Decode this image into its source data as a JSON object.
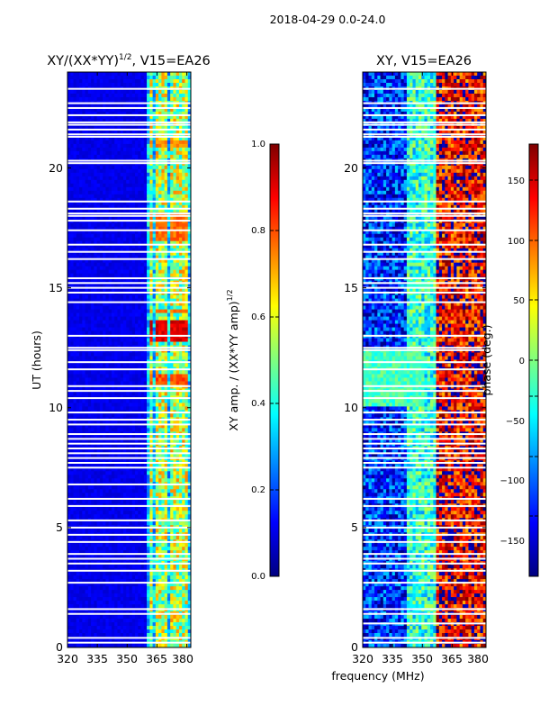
{
  "figure": {
    "suptitle": "2018-04-29 0.0-24.0",
    "xlabel_shared": "frequency (MHz)"
  },
  "colormap": {
    "name": "jet",
    "stops": [
      "#00007f",
      "#0000ff",
      "#007fff",
      "#00ffff",
      "#7fff7f",
      "#ffff00",
      "#ff7f00",
      "#ff0000",
      "#7f0000"
    ]
  },
  "chart_data": [
    {
      "type": "heatmap",
      "title": "XY/(XX*YY)",
      "title_sup": "1/2",
      "title_suffix": ", V15=EA26",
      "xlabel": "",
      "ylabel": "UT (hours)",
      "xlim": [
        320,
        382
      ],
      "ylim": [
        0,
        24
      ],
      "xticks": [
        "320",
        "335",
        "350",
        "365",
        "380"
      ],
      "xtick_values": [
        320,
        335,
        350,
        365,
        380
      ],
      "yticks": [
        "0",
        "5",
        "10",
        "15",
        "20"
      ],
      "ytick_values": [
        0,
        5,
        10,
        15,
        20
      ],
      "colorbar": {
        "label": "XY amp. / (XX*YY amp)",
        "label_sup": "1/2",
        "range": [
          0.0,
          1.0
        ],
        "ticks": [
          "0.0",
          "0.2",
          "0.4",
          "0.6",
          "0.8",
          "1.0"
        ],
        "tick_values": [
          0.0,
          0.2,
          0.4,
          0.6,
          0.8,
          1.0
        ]
      },
      "background_value": 0.08,
      "high_amplitude_band_mhz": [
        360,
        382
      ],
      "high_amplitude_channels_mhz": [
        362,
        366,
        369,
        373,
        376,
        379
      ],
      "high_amplitude_value_range": [
        0.35,
        0.75
      ],
      "peak_intervals_ut": [
        {
          "from": 11.0,
          "to": 11.4,
          "value": 0.85
        },
        {
          "from": 12.8,
          "to": 13.6,
          "value": 0.95
        },
        {
          "from": 13.9,
          "to": 14.1,
          "value": 0.8
        },
        {
          "from": 17.0,
          "to": 18.2,
          "value": 0.82
        },
        {
          "from": 20.9,
          "to": 21.2,
          "value": 0.8
        }
      ],
      "flagged_ut": [
        0.2,
        0.4,
        1.4,
        1.6,
        2.7,
        3.2,
        3.5,
        3.7,
        3.9,
        4.4,
        4.7,
        5.0,
        5.3,
        5.9,
        6.2,
        6.8,
        7.5,
        7.7,
        7.9,
        8.1,
        8.3,
        8.5,
        8.7,
        8.9,
        9.3,
        9.5,
        9.8,
        10.4,
        10.7,
        10.9,
        11.6,
        11.9,
        12.4,
        12.5,
        13.0,
        14.4,
        14.8,
        15.0,
        15.2,
        15.4,
        16.2,
        16.5,
        16.8,
        17.4,
        17.8,
        18.0,
        18.1,
        18.3,
        18.6,
        20.2,
        20.3,
        21.3,
        21.4,
        21.6,
        21.8,
        21.9,
        22.2,
        22.5,
        22.7,
        23.3
      ]
    },
    {
      "type": "heatmap",
      "title": "XY, V15=EA26",
      "xlabel": "frequency (MHz)",
      "ylabel": "",
      "xlim": [
        320,
        382
      ],
      "ylim": [
        0,
        24
      ],
      "xticks": [
        "320",
        "335",
        "350",
        "365",
        "380"
      ],
      "xtick_values": [
        320,
        335,
        350,
        365,
        380
      ],
      "yticks": [
        "0",
        "5",
        "10",
        "15",
        "20"
      ],
      "ytick_values": [
        0,
        5,
        10,
        15,
        20
      ],
      "colorbar": {
        "label": "phase (deg.)",
        "range": [
          -180,
          180
        ],
        "ticks": [
          "−150",
          "−100",
          "−50",
          "0",
          "50",
          "100",
          "150"
        ],
        "tick_values": [
          -150,
          -100,
          -50,
          0,
          50,
          100,
          150
        ]
      },
      "phase_low_freq_deg": -120,
      "phase_mid_freq_deg": -30,
      "phase_high_freq_deg": 140,
      "green_region_ut": [
        10.0,
        12.5
      ],
      "green_region_phase_deg": -20,
      "flagged_ut": [
        0.2,
        0.4,
        1.0,
        1.4,
        1.6,
        2.7,
        3.2,
        3.5,
        3.7,
        3.9,
        4.4,
        4.7,
        5.0,
        5.3,
        5.9,
        6.2,
        7.5,
        7.7,
        7.9,
        8.1,
        8.3,
        8.5,
        8.7,
        8.9,
        9.3,
        9.5,
        9.8,
        10.4,
        10.7,
        10.9,
        11.6,
        11.9,
        12.4,
        12.5,
        13.0,
        14.4,
        14.8,
        15.0,
        15.2,
        15.4,
        16.2,
        16.5,
        16.8,
        17.4,
        17.8,
        18.0,
        18.1,
        18.3,
        18.6,
        20.2,
        20.3,
        21.3,
        21.4,
        21.6,
        21.8,
        21.9,
        22.2,
        22.5,
        22.7,
        23.3
      ]
    }
  ]
}
